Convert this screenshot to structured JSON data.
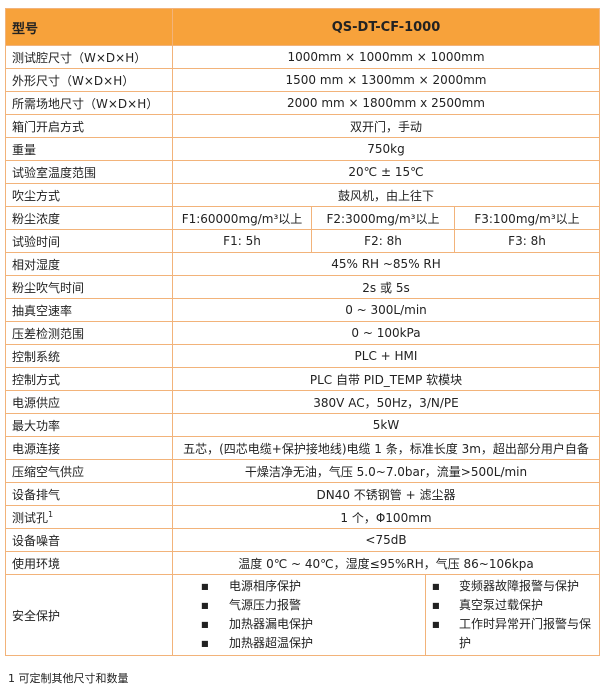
{
  "header": {
    "label": "型号",
    "value": "QS-DT-CF-1000"
  },
  "rows": [
    {
      "label": "测试腔尺寸（W×D×H）",
      "values": [
        "1000mm × 1000mm × 1000mm"
      ]
    },
    {
      "label": "外形尺寸（W×D×H）",
      "values": [
        "1500 mm × 1300mm × 2000mm"
      ]
    },
    {
      "label": "所需场地尺寸（W×D×H）",
      "values": [
        "2000 mm × 1800mm x 2500mm"
      ]
    },
    {
      "label": "箱门开启方式",
      "values": [
        "双开门，手动"
      ]
    },
    {
      "label": "重量",
      "values": [
        "750kg"
      ]
    },
    {
      "label": "试验室温度范围",
      "values": [
        "20℃ ± 15℃"
      ]
    },
    {
      "label": "吹尘方式",
      "values": [
        "鼓风机，由上往下"
      ]
    },
    {
      "label": "粉尘浓度",
      "values": [
        "F1:60000mg/m³以上",
        "F2:3000mg/m³以上",
        "F3:100mg/m³以上"
      ]
    },
    {
      "label": "试验时间",
      "values": [
        "F1: 5h",
        "F2: 8h",
        "F3: 8h"
      ]
    },
    {
      "label": "相对湿度",
      "values": [
        "45% RH ~85% RH"
      ]
    },
    {
      "label": "粉尘吹气时间",
      "values": [
        "2s 或 5s"
      ]
    },
    {
      "label": "抽真空速率",
      "values": [
        "0 ~ 300L/min"
      ]
    },
    {
      "label": "压差检测范围",
      "values": [
        "0 ~ 100kPa"
      ]
    },
    {
      "label": "控制系统",
      "values": [
        "PLC + HMI"
      ]
    },
    {
      "label": "控制方式",
      "values": [
        "PLC 自带 PID_TEMP 软模块"
      ]
    },
    {
      "label": "电源供应",
      "values": [
        "380V AC，50Hz，3/N/PE"
      ]
    },
    {
      "label": "最大功率",
      "values": [
        "5kW"
      ]
    },
    {
      "label": "电源连接",
      "values": [
        "五芯，(四芯电缆+保护接地线)电缆 1 条，标准长度 3m，超出部分用户自备"
      ]
    },
    {
      "label": "压缩空气供应",
      "values": [
        "干燥洁净无油，气压 5.0~7.0bar，流量>500L/min"
      ]
    },
    {
      "label": "设备排气",
      "values": [
        "DN40 不锈钢管 + 滤尘器"
      ]
    },
    {
      "label": "测试孔",
      "sup": "1",
      "values": [
        "1 个，Φ100mm"
      ]
    },
    {
      "label": "设备噪音",
      "values": [
        "<75dB"
      ]
    },
    {
      "label": "使用环境",
      "values": [
        "温度 0℃ ~ 40℃，湿度≤95%RH，气压 86~106kpa"
      ]
    }
  ],
  "safety": {
    "label": "安全保护",
    "left": [
      "电源相序保护",
      "气源压力报警",
      "加热器漏电保护",
      "加热器超温保护"
    ],
    "right": [
      "变频器故障报警与保护",
      "真空泵过载保护",
      "工作时异常开门报警与保护"
    ]
  },
  "footnote": {
    "mark": "1",
    "text": "可定制其他尺寸和数量"
  }
}
